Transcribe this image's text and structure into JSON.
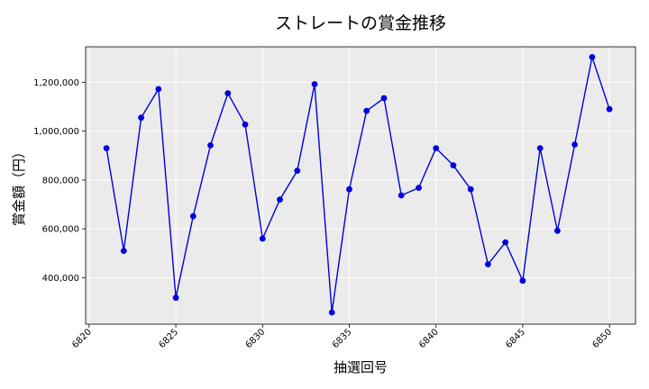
{
  "chart_data": {
    "type": "line",
    "title": "ストレートの賞金推移",
    "xlabel": "抽選回号",
    "ylabel": "賞金額（円）",
    "xlim": [
      6819.8,
      6851.5
    ],
    "ylim": [
      210000,
      1345000
    ],
    "x_ticks": [
      6820,
      6825,
      6830,
      6835,
      6840,
      6845,
      6850
    ],
    "x_tick_labels": [
      "6820",
      "6825",
      "6830",
      "6835",
      "6840",
      "6845",
      "6850"
    ],
    "y_ticks": [
      400000,
      600000,
      800000,
      1000000,
      1200000
    ],
    "y_tick_labels": [
      "400,000",
      "600,000",
      "800,000",
      "1,000,000",
      "1,200,000"
    ],
    "grid": true,
    "background": "#ebebeb",
    "series": [
      {
        "color": "#0000dd",
        "x": [
          6821,
          6822,
          6823,
          6824,
          6825,
          6826,
          6827,
          6828,
          6829,
          6830,
          6831,
          6832,
          6833,
          6834,
          6835,
          6836,
          6837,
          6838,
          6839,
          6840,
          6841,
          6842,
          6843,
          6844,
          6845,
          6846,
          6847,
          6848,
          6849,
          6850
        ],
        "y": [
          930000,
          510000,
          1055000,
          1172000,
          318000,
          652000,
          942000,
          1155000,
          1027000,
          560000,
          720000,
          838000,
          1192000,
          258000,
          762000,
          1083000,
          1135000,
          737000,
          768000,
          930000,
          860000,
          762000,
          455000,
          545000,
          388000,
          930000,
          592000,
          945000,
          1303000,
          1090000
        ]
      }
    ]
  }
}
